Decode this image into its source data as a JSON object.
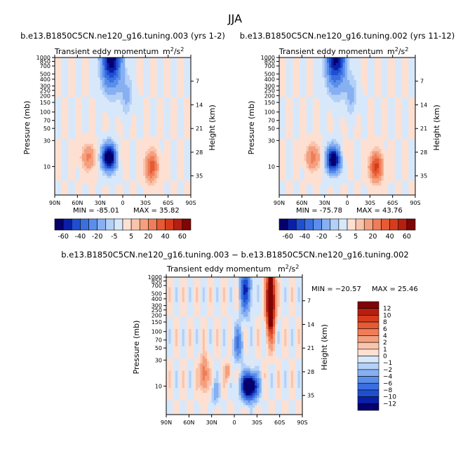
{
  "page_title": "JJA",
  "chart_data": [
    {
      "type": "heatmap",
      "title": "b.e13.B1850C5CN.ne120_g16.tuning.003 (yrs 1-2)",
      "subtitle": "Transient eddy momentum",
      "units_base": "m",
      "units_exp_num": "2",
      "units_exp_den": "2",
      "xlabel": "",
      "ylabel": "Pressure (mb)",
      "ylabel_right": "Height (km)",
      "x_ticks": [
        "90N",
        "60N",
        "30N",
        "0",
        "30S",
        "60S",
        "90S"
      ],
      "x_range": [
        90,
        -90
      ],
      "y_ticks": [
        "10",
        "30",
        "50",
        "70",
        "100",
        "150",
        "200",
        "250",
        "300",
        "400",
        "500",
        "700",
        "850",
        "1000"
      ],
      "y_range_mb": [
        1000,
        3
      ],
      "y_scale": "log",
      "height_ticks": [
        "7",
        "14",
        "21",
        "28",
        "35"
      ],
      "min_label": "MIN = -85.01",
      "max_label": "MAX = 35.82",
      "min": -85.01,
      "max": 35.82,
      "colorbar_levels": [
        -70,
        -60,
        -50,
        -40,
        -30,
        -20,
        -10,
        -5,
        0,
        5,
        10,
        20,
        30,
        40,
        50,
        60,
        70
      ],
      "colorbar_labels": [
        "-60",
        "-40",
        "-20",
        "-5",
        "5",
        "20",
        "40",
        "60"
      ],
      "features": [
        {
          "lat": 18,
          "p": 200,
          "amp": -85,
          "lat_width": 9,
          "logp_width": 0.22
        },
        {
          "lat": 15,
          "p": 3,
          "amp": -70,
          "lat_width": 12,
          "logp_width": 0.5
        },
        {
          "lat": -5,
          "p": 14,
          "amp": -12,
          "lat_width": 8,
          "logp_width": 0.35
        },
        {
          "lat": 45,
          "p": 200,
          "amp": 22,
          "lat_width": 9,
          "logp_width": 0.22
        },
        {
          "lat": -38,
          "p": 300,
          "amp": 36,
          "lat_width": 8,
          "logp_width": 0.25
        },
        {
          "lat": 6,
          "p": 180,
          "amp": 8,
          "lat_width": 6,
          "logp_width": 0.18
        }
      ]
    },
    {
      "type": "heatmap",
      "title": "b.e13.B1850C5CN.ne120_g16.tuning.002 (yrs 11-12)",
      "subtitle": "Transient eddy momentum",
      "units_base": "m",
      "units_exp_num": "2",
      "units_exp_den": "2",
      "xlabel": "",
      "ylabel": "Pressure (mb)",
      "ylabel_right": "Height (km)",
      "x_ticks": [
        "90N",
        "60N",
        "30N",
        "0",
        "30S",
        "60S",
        "90S"
      ],
      "x_range": [
        90,
        -90
      ],
      "y_ticks": [
        "10",
        "30",
        "50",
        "70",
        "100",
        "150",
        "200",
        "250",
        "300",
        "400",
        "500",
        "700",
        "850",
        "1000"
      ],
      "y_range_mb": [
        1000,
        3
      ],
      "y_scale": "log",
      "height_ticks": [
        "7",
        "14",
        "21",
        "28",
        "35"
      ],
      "min_label": "MIN = -75.78",
      "max_label": "MAX = 43.76",
      "min": -75.78,
      "max": 43.76,
      "colorbar_levels": [
        -70,
        -60,
        -50,
        -40,
        -30,
        -20,
        -10,
        -5,
        0,
        5,
        10,
        20,
        30,
        40,
        50,
        60,
        70
      ],
      "colorbar_labels": [
        "-60",
        "-40",
        "-20",
        "-5",
        "5",
        "20",
        "40",
        "60"
      ],
      "features": [
        {
          "lat": 18,
          "p": 220,
          "amp": -76,
          "lat_width": 9,
          "logp_width": 0.22
        },
        {
          "lat": 15,
          "p": 3,
          "amp": -65,
          "lat_width": 12,
          "logp_width": 0.5
        },
        {
          "lat": -5,
          "p": 14,
          "amp": -12,
          "lat_width": 8,
          "logp_width": 0.35
        },
        {
          "lat": 45,
          "p": 200,
          "amp": 24,
          "lat_width": 9,
          "logp_width": 0.22
        },
        {
          "lat": -38,
          "p": 300,
          "amp": 44,
          "lat_width": 8,
          "logp_width": 0.25
        },
        {
          "lat": 6,
          "p": 180,
          "amp": 9,
          "lat_width": 6,
          "logp_width": 0.18
        }
      ]
    },
    {
      "type": "heatmap",
      "title": "b.e13.B1850C5CN.ne120_g16.tuning.003 − b.e13.B1850C5CN.ne120_g16.tuning.002",
      "subtitle": "Transient eddy momentum",
      "units_base": "m",
      "units_exp_num": "2",
      "units_exp_den": "2",
      "xlabel": "",
      "ylabel": "Pressure (mb)",
      "ylabel_right": "Height (km)",
      "x_ticks": [
        "90N",
        "60N",
        "30N",
        "0",
        "30S",
        "60S",
        "90S"
      ],
      "x_range": [
        90,
        -90
      ],
      "y_ticks": [
        "10",
        "30",
        "50",
        "70",
        "100",
        "150",
        "200",
        "250",
        "300",
        "400",
        "500",
        "700",
        "850",
        "1000"
      ],
      "y_range_mb": [
        1000,
        3
      ],
      "y_scale": "log",
      "height_ticks": [
        "7",
        "14",
        "21",
        "28",
        "35"
      ],
      "min_label": "MIN = −20.57",
      "max_label": "MAX =  25.46",
      "min": -20.57,
      "max": 25.46,
      "colorbar_levels": [
        -14,
        -12,
        -10,
        -8,
        -6,
        -4,
        -2,
        -1,
        0,
        1,
        2,
        4,
        6,
        8,
        10,
        12,
        14
      ],
      "colorbar_labels": [
        "12",
        "10",
        "8",
        "6",
        "4",
        "2",
        "1",
        "0",
        "−1",
        "−2",
        "−4",
        "−6",
        "−8",
        "−10",
        "−12"
      ],
      "features": [
        {
          "lat": -20,
          "p": 300,
          "amp": -20,
          "lat_width": 10,
          "logp_width": 0.22
        },
        {
          "lat": -15,
          "p": 5,
          "amp": -10,
          "lat_width": 7,
          "logp_width": 0.4
        },
        {
          "lat": -5,
          "p": 50,
          "amp": -6,
          "lat_width": 6,
          "logp_width": 0.3
        },
        {
          "lat": -48,
          "p": 8,
          "amp": 25,
          "lat_width": 5,
          "logp_width": 0.55
        },
        {
          "lat": 40,
          "p": 180,
          "amp": 6,
          "lat_width": 5,
          "logp_width": 0.3
        },
        {
          "lat": 8,
          "p": 160,
          "amp": 4,
          "lat_width": 4,
          "logp_width": 0.15
        },
        {
          "lat": 25,
          "p": 400,
          "amp": -3,
          "lat_width": 5,
          "logp_width": 0.2
        }
      ]
    }
  ],
  "colors": {
    "main_palette": [
      "#05006e",
      "#0a1fa8",
      "#1f4ed0",
      "#3a6fe0",
      "#5a8eea",
      "#86b0f2",
      "#b3d0f7",
      "#d8e8fb",
      "#fde0d2",
      "#fac4ac",
      "#f4a07e",
      "#ee7d58",
      "#e65a34",
      "#d63c1c",
      "#b51f10",
      "#800505"
    ],
    "diff_palette": [
      "#05006e",
      "#0a1fa8",
      "#1f4ed0",
      "#3a6fe0",
      "#5a8eea",
      "#86b0f2",
      "#b3d0f7",
      "#d8e8fb",
      "#fde0d2",
      "#fac4ac",
      "#f4a07e",
      "#ee7d58",
      "#e65a34",
      "#d63c1c",
      "#b51f10",
      "#800505"
    ]
  }
}
